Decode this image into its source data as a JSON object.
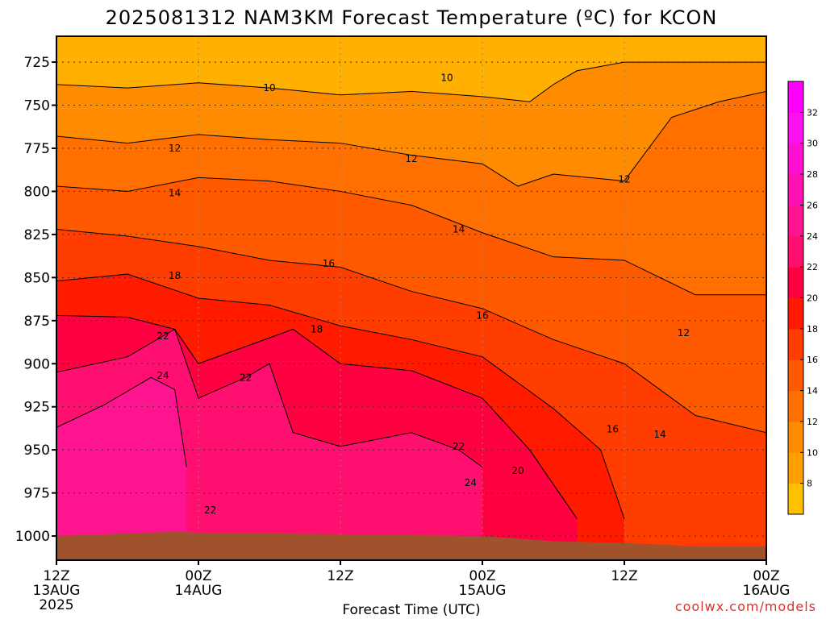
{
  "chart_data": {
    "type": "heatmap",
    "title": "2025081312 NAM3KM Forecast Temperature (ºC) for KCON",
    "xlabel": "Forecast Time (UTC)",
    "ylabel": "",
    "credit": "coolwx.com/models",
    "x_ticks": [
      {
        "hour": 0,
        "label": "12Z",
        "date": "13AUG",
        "year": "2025"
      },
      {
        "hour": 12,
        "label": "00Z",
        "date": "14AUG",
        "year": ""
      },
      {
        "hour": 24,
        "label": "12Z",
        "date": "",
        "year": ""
      },
      {
        "hour": 36,
        "label": "00Z",
        "date": "15AUG",
        "year": ""
      },
      {
        "hour": 48,
        "label": "12Z",
        "date": "",
        "year": ""
      },
      {
        "hour": 60,
        "label": "00Z",
        "date": "16AUG",
        "year": ""
      }
    ],
    "xlim": [
      0,
      60
    ],
    "y_ticks": [
      725,
      750,
      775,
      800,
      825,
      850,
      875,
      900,
      925,
      950,
      975,
      1000
    ],
    "ylim": [
      1014,
      710
    ],
    "colorbar": {
      "levels": [
        8,
        10,
        12,
        14,
        16,
        18,
        20,
        22,
        24,
        26,
        28,
        30,
        32
      ],
      "colors": [
        "#ffc000",
        "#ffa000",
        "#ff8c00",
        "#ff7000",
        "#ff5a00",
        "#ff3d00",
        "#ff1a00",
        "#ff0040",
        "#ff1070",
        "#ff1490",
        "#ff10b0",
        "#ff10d0",
        "#ff10ee",
        "#ff00ff"
      ]
    },
    "ground_color": "#a0522d",
    "contours": [
      {
        "value": 10,
        "points": [
          [
            0,
            738
          ],
          [
            6,
            740
          ],
          [
            12,
            737
          ],
          [
            18,
            740
          ],
          [
            24,
            744
          ],
          [
            30,
            742
          ],
          [
            36,
            745
          ],
          [
            40,
            748
          ],
          [
            42,
            738
          ],
          [
            44,
            730
          ],
          [
            48,
            725
          ],
          [
            54,
            725
          ],
          [
            60,
            725
          ]
        ],
        "labels": [
          [
            18,
            740
          ],
          [
            33,
            734
          ]
        ]
      },
      {
        "value": 12,
        "points": [
          [
            0,
            768
          ],
          [
            6,
            772
          ],
          [
            12,
            767
          ],
          [
            18,
            770
          ],
          [
            24,
            772
          ],
          [
            30,
            779
          ],
          [
            36,
            784
          ],
          [
            39,
            797
          ],
          [
            42,
            790
          ],
          [
            48,
            794
          ],
          [
            52,
            757
          ],
          [
            56,
            748
          ],
          [
            60,
            742
          ]
        ],
        "labels": [
          [
            10,
            775
          ],
          [
            30,
            781
          ],
          [
            48,
            793
          ],
          [
            53,
            882
          ]
        ]
      },
      {
        "value": 14,
        "points": [
          [
            0,
            797
          ],
          [
            6,
            800
          ],
          [
            12,
            792
          ],
          [
            18,
            794
          ],
          [
            24,
            800
          ],
          [
            30,
            808
          ],
          [
            36,
            824
          ],
          [
            42,
            838
          ],
          [
            48,
            840
          ],
          [
            54,
            860
          ],
          [
            60,
            860
          ]
        ],
        "labels": [
          [
            10,
            801
          ],
          [
            34,
            822
          ],
          [
            51,
            941
          ]
        ]
      },
      {
        "value": 16,
        "points": [
          [
            0,
            822
          ],
          [
            6,
            826
          ],
          [
            12,
            832
          ],
          [
            18,
            840
          ],
          [
            24,
            844
          ],
          [
            30,
            858
          ],
          [
            36,
            868
          ],
          [
            42,
            886
          ],
          [
            48,
            900
          ],
          [
            54,
            930
          ],
          [
            60,
            940
          ]
        ],
        "labels": [
          [
            23,
            842
          ],
          [
            36,
            872
          ],
          [
            47,
            938
          ]
        ]
      },
      {
        "value": 18,
        "points": [
          [
            0,
            852
          ],
          [
            6,
            848
          ],
          [
            12,
            862
          ],
          [
            18,
            866
          ],
          [
            24,
            878
          ],
          [
            30,
            886
          ],
          [
            36,
            896
          ],
          [
            42,
            926
          ],
          [
            46,
            950
          ],
          [
            48,
            990
          ]
        ],
        "labels": [
          [
            10,
            849
          ],
          [
            22,
            880
          ]
        ]
      },
      {
        "value": 20,
        "points": [
          [
            0,
            872
          ],
          [
            6,
            873
          ],
          [
            10,
            880
          ],
          [
            12,
            900
          ],
          [
            16,
            890
          ],
          [
            20,
            880
          ],
          [
            24,
            900
          ],
          [
            30,
            904
          ],
          [
            36,
            920
          ],
          [
            40,
            950
          ],
          [
            44,
            990
          ]
        ],
        "labels": [
          [
            39,
            962
          ]
        ]
      },
      {
        "value": 22,
        "points": [
          [
            0,
            905
          ],
          [
            6,
            896
          ],
          [
            10,
            880
          ],
          [
            12,
            920
          ],
          [
            16,
            908
          ],
          [
            18,
            900
          ],
          [
            20,
            940
          ],
          [
            24,
            948
          ],
          [
            30,
            940
          ],
          [
            34,
            950
          ],
          [
            36,
            960
          ]
        ],
        "labels": [
          [
            9,
            884
          ],
          [
            16,
            908
          ],
          [
            34,
            948
          ],
          [
            13,
            985
          ]
        ]
      },
      {
        "value": 24,
        "points": [
          [
            0,
            937
          ],
          [
            4,
            924
          ],
          [
            8,
            908
          ],
          [
            10,
            915
          ],
          [
            11,
            960
          ]
        ],
        "labels": [
          [
            9,
            907
          ],
          [
            35,
            969
          ]
        ]
      }
    ]
  }
}
